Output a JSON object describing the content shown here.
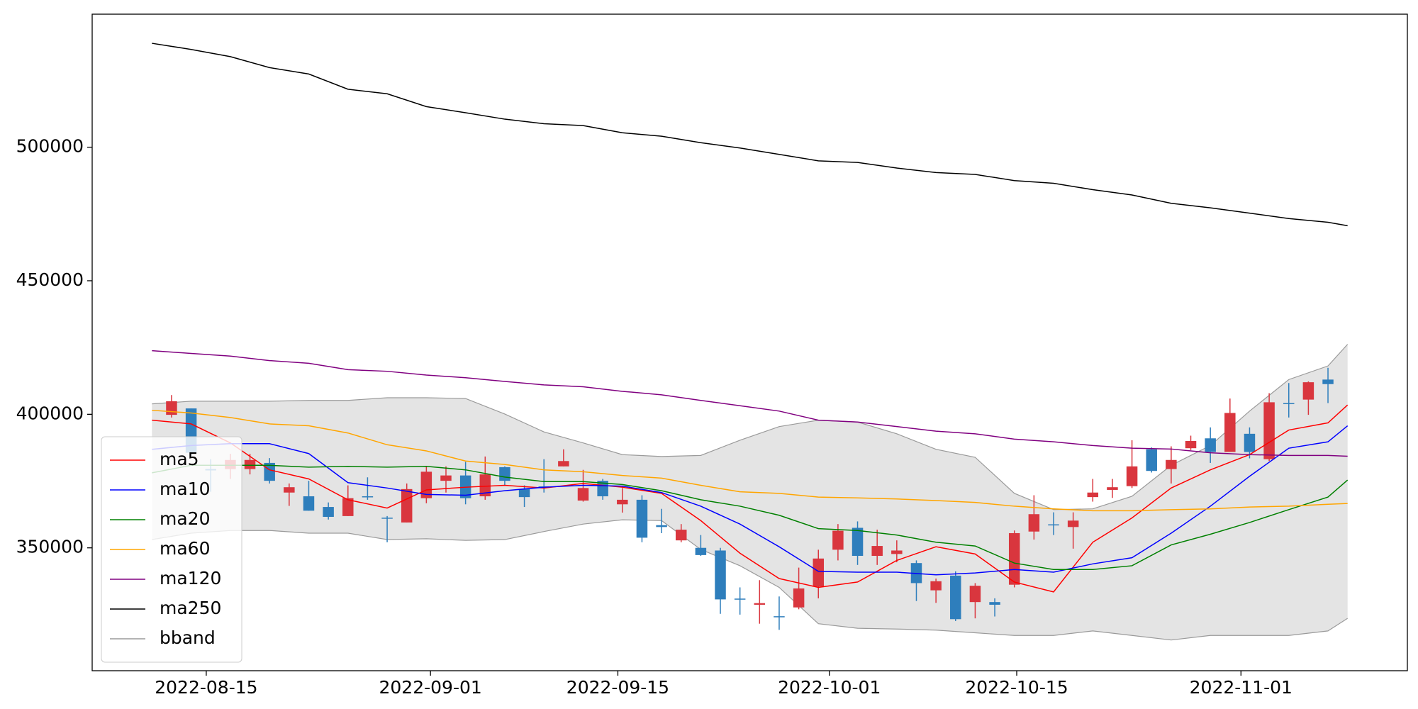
{
  "chart_data": {
    "type": "candlestick",
    "legend": "lower left",
    "xlim": [
      -3.05,
      64.05
    ],
    "xticks": [
      {
        "value": 2.77,
        "label": "2022-08-15"
      },
      {
        "value": 14.21,
        "label": "2022-09-01"
      },
      {
        "value": 23.77,
        "label": "2022-09-15"
      },
      {
        "value": 34.56,
        "label": "2022-10-01"
      },
      {
        "value": 44.12,
        "label": "2022-10-15"
      },
      {
        "value": 55.56,
        "label": "2022-11-01"
      }
    ],
    "ylim": [
      304000,
      549800
    ],
    "yticks": [
      350000,
      400000,
      450000,
      500000
    ],
    "candles": {
      "up_color": "#d9363e",
      "down_color": "#2e7ebc",
      "x": [
        1,
        2,
        3,
        4,
        5,
        6,
        7,
        8,
        9,
        10,
        11,
        12,
        13,
        14,
        15,
        16,
        17,
        18,
        19,
        20,
        21,
        22,
        23,
        24,
        25,
        26,
        27,
        28,
        29,
        30,
        31,
        32,
        33,
        34,
        35,
        36,
        37,
        38,
        39,
        40,
        41,
        42,
        43,
        44,
        45,
        46,
        47,
        48,
        49,
        50,
        51,
        52,
        53,
        54,
        55,
        56,
        57,
        58,
        59,
        60
      ],
      "open": [
        399800,
        402200,
        379500,
        379500,
        379500,
        381800,
        370700,
        369300,
        365300,
        361900,
        369300,
        361300,
        359500,
        368600,
        375100,
        377100,
        369300,
        380200,
        372000,
        373000,
        380500,
        367700,
        375100,
        366300,
        368000,
        358500,
        352800,
        350000,
        349000,
        331000,
        328700,
        324400,
        327700,
        335500,
        349300,
        357500,
        347000,
        347700,
        344300,
        334100,
        339600,
        329700,
        329700,
        336200,
        356100,
        358800,
        357800,
        369000,
        371700,
        373100,
        386900,
        379500,
        387300,
        391000,
        385900,
        392700,
        383200,
        404200,
        405500,
        413000
      ],
      "high": [
        407200,
        402200,
        383200,
        385200,
        385200,
        383600,
        374100,
        375100,
        367000,
        373400,
        376400,
        361900,
        374100,
        380500,
        380500,
        382200,
        384200,
        380500,
        373400,
        383200,
        386900,
        379200,
        375800,
        372400,
        369700,
        364600,
        358900,
        354800,
        350000,
        335200,
        337900,
        331800,
        342600,
        349300,
        358900,
        359900,
        356800,
        352800,
        345300,
        338500,
        341200,
        336800,
        331100,
        356500,
        369700,
        363300,
        363300,
        375800,
        375800,
        390300,
        387600,
        388000,
        392000,
        395100,
        405900,
        395100,
        407900,
        411700,
        412300,
        417400
      ],
      "low": [
        398800,
        384300,
        371000,
        375800,
        377500,
        374100,
        365700,
        363900,
        360600,
        361900,
        368000,
        352100,
        359500,
        366700,
        370700,
        366300,
        368000,
        373400,
        365300,
        370700,
        380500,
        367300,
        368000,
        363200,
        352100,
        355500,
        352100,
        347000,
        325300,
        325000,
        321600,
        319300,
        327000,
        331100,
        345300,
        343600,
        343600,
        344600,
        330100,
        329400,
        322600,
        323600,
        324300,
        335200,
        353100,
        354800,
        349700,
        367300,
        368700,
        372400,
        378200,
        374100,
        386600,
        381800,
        385900,
        383500,
        382500,
        398800,
        399800,
        404200
      ],
      "close": [
        404900,
        385600,
        379000,
        382900,
        382900,
        375100,
        372700,
        363900,
        361600,
        368600,
        369000,
        360900,
        372000,
        378500,
        377100,
        368600,
        377500,
        375100,
        369000,
        372500,
        382500,
        372400,
        369300,
        368000,
        353800,
        357800,
        356800,
        347300,
        330700,
        330700,
        329300,
        324000,
        334800,
        346000,
        356400,
        347000,
        350700,
        349000,
        336800,
        337500,
        323300,
        335800,
        328700,
        355500,
        362600,
        358500,
        360200,
        370700,
        372700,
        380500,
        378800,
        382900,
        390000,
        385900,
        400500,
        385900,
        404500,
        403900,
        412000,
        411300
      ]
    },
    "x": [
      0,
      2,
      4,
      6,
      8,
      10,
      12,
      14,
      16,
      18,
      20,
      22,
      24,
      26,
      28,
      30,
      32,
      34,
      36,
      38,
      40,
      42,
      44,
      46,
      48,
      50,
      52,
      54,
      56,
      58,
      60,
      61
    ],
    "series": [
      {
        "name": "ma5",
        "color": "#ff0000",
        "values": [
          397800,
          396400,
          389300,
          379200,
          375800,
          368000,
          364900,
          371700,
          372700,
          373400,
          372400,
          374100,
          372700,
          370400,
          360200,
          348000,
          338500,
          335200,
          337200,
          345300,
          350400,
          347700,
          337200,
          333500,
          352100,
          361200,
          372400,
          379200,
          384900,
          394100,
          396800,
          403500
        ]
      },
      {
        "name": "ma10",
        "color": "#0000ff",
        "values": [
          386900,
          388300,
          389000,
          389000,
          385300,
          374400,
          372400,
          370000,
          369700,
          371400,
          372700,
          373400,
          373100,
          370700,
          365600,
          358900,
          350400,
          341200,
          340900,
          340900,
          339900,
          340600,
          341900,
          340900,
          344000,
          346300,
          355500,
          365600,
          376800,
          387300,
          389700,
          395700
        ]
      },
      {
        "name": "ma20",
        "color": "#008000",
        "values": [
          378100,
          380900,
          380900,
          380900,
          380200,
          380500,
          380200,
          380500,
          379200,
          376500,
          374800,
          374800,
          373700,
          371400,
          368000,
          365600,
          362200,
          357200,
          356500,
          354800,
          352100,
          350700,
          344300,
          341900,
          341900,
          343300,
          351100,
          355100,
          359500,
          364300,
          369000,
          375400
        ]
      },
      {
        "name": "ma60",
        "color": "#ffa500",
        "values": [
          401500,
          400500,
          398800,
          396400,
          395700,
          393000,
          388600,
          386300,
          382500,
          381200,
          379200,
          378500,
          377100,
          376100,
          373400,
          371000,
          370400,
          369000,
          368700,
          368300,
          367700,
          367000,
          365600,
          364600,
          363900,
          363900,
          364300,
          364600,
          365300,
          365600,
          366300,
          366600
        ]
      },
      {
        "name": "ma120",
        "color": "#800080",
        "values": [
          423800,
          422800,
          421800,
          420100,
          419100,
          416700,
          416100,
          414700,
          413700,
          412300,
          411000,
          410300,
          408600,
          407300,
          405200,
          403200,
          401200,
          397800,
          397100,
          395400,
          393700,
          392700,
          390700,
          389700,
          388300,
          387300,
          387000,
          385600,
          384900,
          384600,
          384600,
          384300
        ]
      },
      {
        "name": "ma250",
        "color": "#000000",
        "values": [
          538900,
          536600,
          533900,
          529800,
          527400,
          521700,
          520000,
          515200,
          512900,
          510500,
          508800,
          508100,
          505400,
          504100,
          501700,
          499700,
          497300,
          494900,
          494300,
          492200,
          490500,
          489800,
          487500,
          486500,
          484100,
          482100,
          479000,
          477300,
          475300,
          473300,
          471900,
          470600
        ]
      }
    ],
    "band": {
      "name": "bband",
      "color": "#9a9a9a",
      "fill": "#e4e4e4",
      "upper": [
        403900,
        404900,
        404900,
        404900,
        405200,
        405200,
        406200,
        406200,
        405900,
        400100,
        393400,
        389300,
        384900,
        384200,
        384600,
        390300,
        395400,
        397800,
        397100,
        392700,
        386900,
        383900,
        370400,
        364300,
        364600,
        369300,
        380900,
        388300,
        401200,
        413000,
        418100,
        426200
      ],
      "lower": [
        353100,
        355500,
        356500,
        356500,
        355500,
        355500,
        353100,
        353400,
        352800,
        353100,
        356100,
        358900,
        360500,
        360200,
        349400,
        343300,
        335200,
        321600,
        319900,
        319600,
        319200,
        318200,
        317200,
        317200,
        318900,
        317200,
        315500,
        317200,
        317200,
        317200,
        318900,
        323600
      ]
    }
  }
}
